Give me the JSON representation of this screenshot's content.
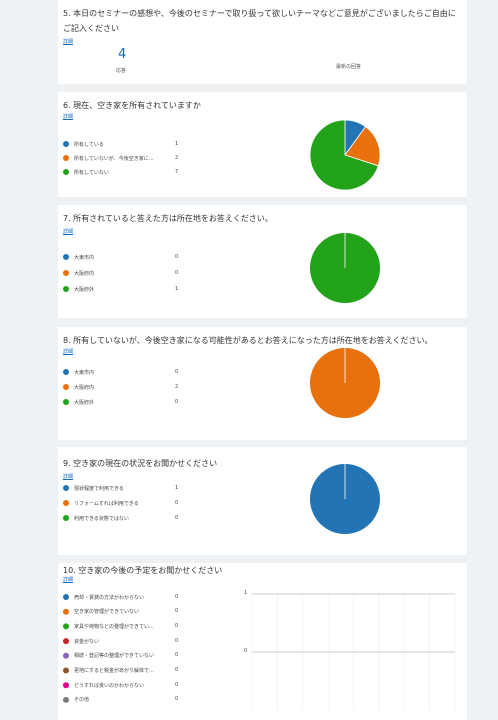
{
  "sections": [
    {
      "title": "5. 本日のセミナーの感想や、今後のセミナーで取り扱って欲しいテーマなどご意見がございましたらご自由にご記入ください",
      "detail": "詳細",
      "responses": {
        "count": 4,
        "label": "応答"
      },
      "latest": "最新の回答"
    },
    {
      "title": "6. 現在、空き家を所有されていますか",
      "detail": "詳細",
      "chart": "pie",
      "options": [
        {
          "label": "所有している",
          "count": 1,
          "color": "#2274b5"
        },
        {
          "label": "所有していないが、今後空き家に...",
          "count": 2,
          "color": "#e8700d"
        },
        {
          "label": "所有していない",
          "count": 7,
          "color": "#22a31a"
        }
      ]
    },
    {
      "title": "7. 所有されていると答えた方は所在地をお答えください。",
      "detail": "詳細",
      "chart": "pie",
      "options": [
        {
          "label": "大東市内",
          "count": 0,
          "color": "#2274b5"
        },
        {
          "label": "大阪府内",
          "count": 0,
          "color": "#e8700d"
        },
        {
          "label": "大阪府外",
          "count": 1,
          "color": "#22a31a"
        }
      ]
    },
    {
      "title": "8. 所有していないが、今後空き家になる可能性があるとお答えになった方は所在地をお答えください。",
      "detail": "詳細",
      "chart": "pie",
      "options": [
        {
          "label": "大東市内",
          "count": 0,
          "color": "#2274b5"
        },
        {
          "label": "大阪府内",
          "count": 2,
          "color": "#e8700d"
        },
        {
          "label": "大阪府外",
          "count": 0,
          "color": "#22a31a"
        }
      ]
    },
    {
      "title": "9. 空き家の現在の状況をお聞かせください",
      "detail": "詳細",
      "chart": "pie",
      "options": [
        {
          "label": "現状程度で利用できる",
          "count": 1,
          "color": "#2274b5"
        },
        {
          "label": "リフォームすれば利用できる",
          "count": 0,
          "color": "#e8700d"
        },
        {
          "label": "利用できる状態ではない",
          "count": 0,
          "color": "#22a31a"
        }
      ]
    },
    {
      "title": "10. 空き家の今後の予定をお聞かせください",
      "detail": "詳細",
      "chart": "bar",
      "ylim": [
        -1,
        1
      ],
      "yticks": [
        0,
        1
      ],
      "options": [
        {
          "label": "売却・賃貸の方法がわからない",
          "count": 0,
          "color": "#2274b5"
        },
        {
          "label": "空き家の管理ができていない",
          "count": 0,
          "color": "#e8700d"
        },
        {
          "label": "家具や荷物などの整理ができてい...",
          "count": 0,
          "color": "#22a31a"
        },
        {
          "label": "資金がない",
          "count": 0,
          "color": "#c4262e"
        },
        {
          "label": "相続・登記等の整理ができていない",
          "count": 0,
          "color": "#8764b8"
        },
        {
          "label": "更地にすると税金があがり解体で...",
          "count": 0,
          "color": "#8e562e"
        },
        {
          "label": "どうすれば良いのかわからない",
          "count": 0,
          "color": "#e3008c"
        },
        {
          "label": "その他",
          "count": 0,
          "color": "#7a7a7a"
        }
      ]
    }
  ]
}
